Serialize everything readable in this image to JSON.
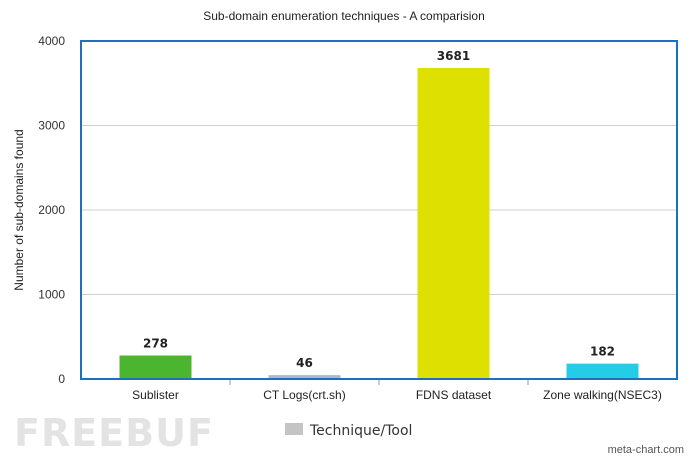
{
  "chart_data": {
    "type": "bar",
    "title": "Sub-domain enumeration techniques - A comparision",
    "xlabel": "",
    "ylabel": "Number of sub-domains found",
    "ylim": [
      0,
      4000
    ],
    "yticks": [
      0,
      1000,
      2000,
      3000,
      4000
    ],
    "grid": true,
    "categories": [
      "Sublister",
      "CT Logs(crt.sh)",
      "FDNS dataset",
      "Zone walking(NSEC3)"
    ],
    "values": [
      278,
      46,
      3681,
      182
    ],
    "colors": [
      "#4cb52f",
      "#b3b8c4",
      "#dde000",
      "#24cde6"
    ],
    "legend": {
      "label": "Technique/Tool",
      "color": "#c4c4c4",
      "placement": "bottom-center"
    },
    "frame_color": "#1f6fbf"
  },
  "credit": "meta-chart.com",
  "watermark": "FREEBUF"
}
